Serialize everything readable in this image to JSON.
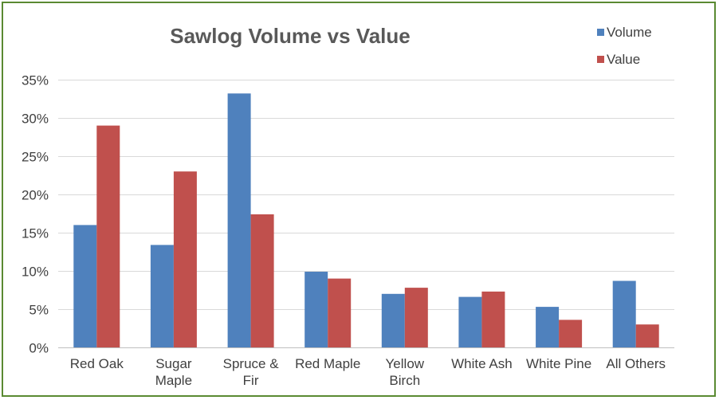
{
  "chart_data": {
    "type": "bar",
    "title": "Sawlog Volume vs Value",
    "xlabel": "",
    "ylabel": "",
    "categories": [
      [
        "Red Oak"
      ],
      [
        "Sugar",
        "Maple"
      ],
      [
        "Spruce &",
        "Fir"
      ],
      [
        "Red Maple"
      ],
      [
        "Yellow",
        "Birch"
      ],
      [
        "White Ash"
      ],
      [
        "White Pine"
      ],
      [
        "All Others"
      ]
    ],
    "series": [
      {
        "name": "Volume",
        "color": "#4f81bd",
        "values": [
          16.0,
          13.4,
          33.2,
          9.9,
          7.0,
          6.6,
          5.3,
          8.7
        ]
      },
      {
        "name": "Value",
        "color": "#c0504d",
        "values": [
          29.0,
          23.0,
          17.4,
          9.0,
          7.8,
          7.3,
          3.6,
          3.0
        ]
      }
    ],
    "ylim": [
      0,
      35
    ],
    "ytick_step": 5,
    "ytick_format": "percent",
    "grid": true,
    "legend_position": "top-right"
  }
}
